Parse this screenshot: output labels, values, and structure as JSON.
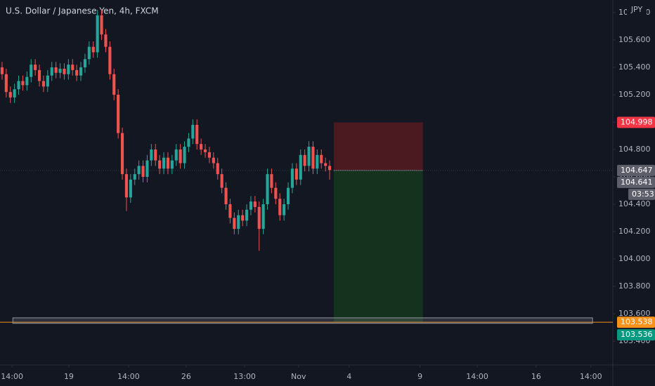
{
  "chart_data": {
    "type": "candlestick",
    "title": "U.S. Dollar / Japanese Yen, 4h, FXCM",
    "currency": "JPY",
    "up_color": "#26a69a",
    "down_color": "#ef5350",
    "grid": false,
    "open": [
      105.4,
      105.35,
      105.22,
      105.18,
      105.24,
      105.3,
      105.27,
      105.33,
      105.42,
      105.38,
      105.3,
      105.26,
      105.34,
      105.4,
      105.36,
      105.39,
      105.35,
      105.42,
      105.38,
      105.34,
      105.4,
      105.46,
      105.55,
      105.51,
      105.78,
      105.64,
      105.55,
      105.35,
      105.2,
      104.92,
      104.62,
      104.45,
      104.58,
      104.62,
      104.68,
      104.6,
      104.72,
      104.8,
      104.72,
      104.66,
      104.74,
      104.66,
      104.72,
      104.8,
      104.7,
      104.82,
      104.88,
      104.98,
      104.84,
      104.8,
      104.78,
      104.74,
      104.7,
      104.62,
      104.52,
      104.4,
      104.3,
      104.22,
      104.32,
      104.28,
      104.36,
      104.42,
      104.38,
      104.22,
      104.4,
      104.62,
      104.52,
      104.44,
      104.32,
      104.4,
      104.52,
      104.66,
      104.58,
      104.76,
      104.68,
      104.82,
      104.66,
      104.76,
      104.7,
      104.68
    ],
    "high": [
      105.44,
      105.39,
      105.26,
      105.28,
      105.34,
      105.34,
      105.37,
      105.46,
      105.46,
      105.42,
      105.34,
      105.38,
      105.44,
      105.44,
      105.43,
      105.43,
      105.46,
      105.46,
      105.42,
      105.44,
      105.5,
      105.59,
      105.59,
      105.82,
      105.82,
      105.68,
      105.59,
      105.39,
      105.24,
      104.96,
      104.66,
      104.62,
      104.66,
      104.72,
      104.72,
      104.76,
      104.84,
      104.84,
      104.76,
      104.78,
      104.78,
      104.76,
      104.84,
      104.84,
      104.86,
      104.92,
      105.02,
      105.02,
      104.88,
      104.84,
      104.82,
      104.78,
      104.74,
      104.66,
      104.56,
      104.44,
      104.34,
      104.36,
      104.36,
      104.4,
      104.46,
      104.46,
      104.42,
      104.44,
      104.66,
      104.66,
      104.56,
      104.48,
      104.44,
      104.56,
      104.7,
      104.7,
      104.8,
      104.8,
      104.86,
      104.86,
      104.8,
      104.8,
      104.74,
      104.72
    ],
    "low": [
      105.31,
      105.18,
      105.14,
      105.14,
      105.2,
      105.23,
      105.23,
      105.29,
      105.34,
      105.26,
      105.22,
      105.22,
      105.3,
      105.32,
      105.32,
      105.31,
      105.31,
      105.34,
      105.3,
      105.3,
      105.36,
      105.42,
      105.47,
      105.47,
      105.6,
      105.51,
      105.31,
      105.16,
      104.88,
      104.58,
      104.35,
      104.41,
      104.54,
      104.58,
      104.56,
      104.56,
      104.68,
      104.68,
      104.62,
      104.62,
      104.62,
      104.62,
      104.68,
      104.66,
      104.66,
      104.78,
      104.84,
      104.8,
      104.76,
      104.74,
      104.7,
      104.66,
      104.58,
      104.48,
      104.36,
      104.26,
      104.18,
      104.18,
      104.24,
      104.24,
      104.32,
      104.34,
      104.06,
      104.18,
      104.36,
      104.48,
      104.4,
      104.28,
      104.28,
      104.36,
      104.48,
      104.54,
      104.54,
      104.64,
      104.64,
      104.62,
      104.62,
      104.66,
      104.64,
      104.58
    ],
    "close": [
      105.35,
      105.22,
      105.18,
      105.24,
      105.3,
      105.27,
      105.33,
      105.42,
      105.38,
      105.3,
      105.26,
      105.34,
      105.4,
      105.36,
      105.39,
      105.35,
      105.42,
      105.38,
      105.34,
      105.4,
      105.46,
      105.55,
      105.51,
      105.78,
      105.64,
      105.55,
      105.35,
      105.2,
      104.92,
      104.62,
      104.45,
      104.58,
      104.62,
      104.68,
      104.6,
      104.72,
      104.8,
      104.72,
      104.66,
      104.74,
      104.66,
      104.72,
      104.8,
      104.7,
      104.82,
      104.88,
      104.98,
      104.84,
      104.8,
      104.78,
      104.74,
      104.7,
      104.62,
      104.52,
      104.4,
      104.3,
      104.22,
      104.32,
      104.28,
      104.36,
      104.42,
      104.38,
      104.22,
      104.4,
      104.62,
      104.52,
      104.44,
      104.32,
      104.4,
      104.52,
      104.66,
      104.58,
      104.76,
      104.68,
      104.82,
      104.66,
      104.76,
      104.7,
      104.68,
      104.65
    ],
    "xlim": [
      -0.5,
      147.3
    ],
    "xticks": [
      {
        "value": 2.4,
        "label": "14:00"
      },
      {
        "value": 16.1,
        "label": "19"
      },
      {
        "value": 30.5,
        "label": "14:00"
      },
      {
        "value": 44.4,
        "label": "26"
      },
      {
        "value": 58.5,
        "label": "13:00"
      },
      {
        "value": 71.5,
        "label": "Nov"
      },
      {
        "value": 83.7,
        "label": "4"
      },
      {
        "value": 100.8,
        "label": "9"
      },
      {
        "value": 114.6,
        "label": "14:00"
      },
      {
        "value": 128.8,
        "label": "16"
      },
      {
        "value": 142.0,
        "label": "14:00"
      }
    ],
    "ylim": [
      103.226,
      105.892
    ],
    "yticks": [
      {
        "value": 103.4,
        "label": "103.400"
      },
      {
        "value": 103.6,
        "label": "103.600"
      },
      {
        "value": 103.8,
        "label": "103.800"
      },
      {
        "value": 104.0,
        "label": "104.000"
      },
      {
        "value": 104.2,
        "label": "104.200"
      },
      {
        "value": 104.4,
        "label": "104.400"
      },
      {
        "value": 104.6,
        "label": "104.600"
      },
      {
        "value": 104.8,
        "label": "104.800"
      },
      {
        "value": 105.0,
        "label": "105.000"
      },
      {
        "value": 105.2,
        "label": "105.200"
      },
      {
        "value": 105.4,
        "label": "105.400"
      },
      {
        "value": 105.6,
        "label": "105.600"
      },
      {
        "value": 105.8,
        "label": "105.800"
      }
    ],
    "position": {
      "entry": 104.647,
      "stop": 104.998,
      "target": 103.536,
      "start": 80,
      "end": 101.5,
      "loss_color": "#4a1a20",
      "profit_color": "#15321f"
    },
    "zone": {
      "low": 103.53,
      "high": 103.57,
      "start": 2.6,
      "end": 142.4,
      "color": "#9598a1"
    },
    "level": {
      "value": 103.538,
      "color": "#f7931a"
    },
    "markers": [
      {
        "value": 104.998,
        "color": "#f23645"
      },
      {
        "value": 104.647,
        "color": "#5d606b"
      },
      {
        "value": 104.641,
        "color": "#5d606b"
      },
      {
        "value": 103.538,
        "color": "#f7931a"
      },
      {
        "value": 103.536,
        "color": "#089981"
      }
    ],
    "countdown": "03:53"
  }
}
